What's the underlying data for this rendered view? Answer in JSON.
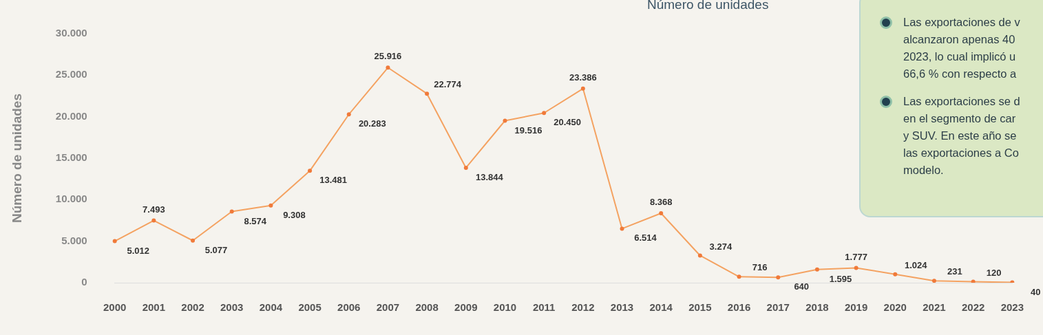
{
  "chart_data": {
    "type": "line",
    "title": "Número de unidades",
    "ylabel": "Número de unidades",
    "categories": [
      "2000",
      "2001",
      "2002",
      "2003",
      "2004",
      "2005",
      "2006",
      "2007",
      "2008",
      "2009",
      "2010",
      "2011",
      "2012",
      "2013",
      "2014",
      "2015",
      "2016",
      "2017",
      "2018",
      "2019",
      "2020",
      "2021",
      "2022",
      "2023"
    ],
    "series": [
      {
        "color": "#f4a261",
        "values": [
          5012,
          7493,
          5077,
          8574,
          9308,
          13481,
          20283,
          25916,
          22774,
          13844,
          19516,
          20450,
          23386,
          6514,
          8368,
          3274,
          716,
          640,
          1595,
          1777,
          1024,
          231,
          120,
          40
        ]
      }
    ],
    "ylim": [
      0,
      30000
    ],
    "yticks": [
      {
        "value": 0,
        "label": "0"
      },
      {
        "value": 5000,
        "label": "5.000"
      },
      {
        "value": 10000,
        "label": "10.000"
      },
      {
        "value": 15000,
        "label": "15.000"
      },
      {
        "value": 20000,
        "label": "20.000"
      },
      {
        "value": 25000,
        "label": "25.000"
      },
      {
        "value": 30000,
        "label": "30.000"
      }
    ],
    "value_labels": [
      "5.012",
      "7.493",
      "5.077",
      "8.574",
      "9.308",
      "13.481",
      "20.283",
      "25.916",
      "22.774",
      "13.844",
      "19.516",
      "20.450",
      "23.386",
      "6.514",
      "8.368",
      "3.274",
      "716",
      "640",
      "1.595",
      "1.777",
      "1.024",
      "231",
      "120",
      "40"
    ],
    "grid": false,
    "legend": false,
    "marker": "circle",
    "line_style": "solid",
    "annotations": [
      "Las exportaciones de v\nalcanzaron apenas 40\n2023, lo cual implicó u\n66,6 % con respecto a",
      "Las exportaciones se d\nen el segmento de car\ny SUV. En este año se\nlas exportaciones a Co\nmodelo."
    ]
  }
}
